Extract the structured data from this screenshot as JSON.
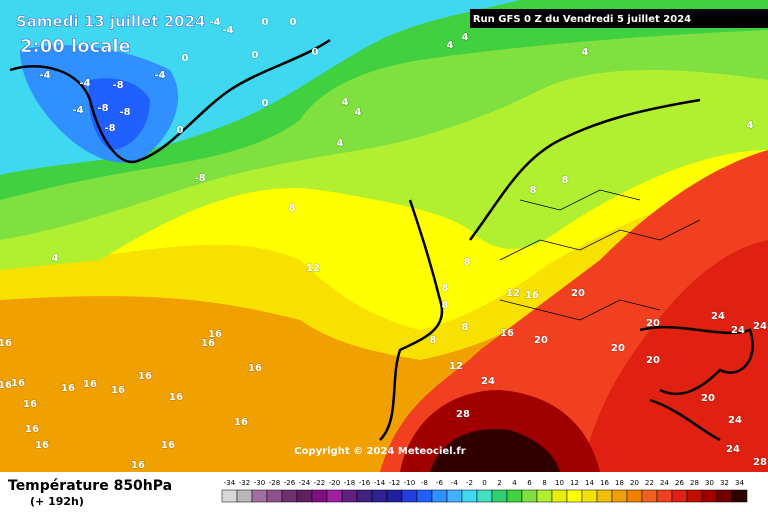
{
  "header": {
    "valid_date": "Samedi 13 juillet 2024",
    "local_time": "2:00 locale",
    "run": "Run GFS 0 Z du Vendredi 5 juillet 2024"
  },
  "footer": {
    "title": "Température 850hPa",
    "lead": "(+ 192h)",
    "copyright": "Copyright © 2024 Meteociel.fr"
  },
  "legend": {
    "values": [
      -34,
      -32,
      -30,
      -28,
      -26,
      -24,
      -22,
      -20,
      -18,
      -16,
      -14,
      -12,
      -10,
      -8,
      -6,
      -4,
      -2,
      0,
      2,
      4,
      6,
      8,
      10,
      12,
      14,
      16,
      18,
      20,
      22,
      24,
      26,
      28,
      30,
      32,
      34
    ],
    "colors": [
      "#d8d8d8",
      "#b8b8b8",
      "#a070a0",
      "#905090",
      "#703070",
      "#602060",
      "#801080",
      "#a020a0",
      "#602080",
      "#402080",
      "#302090",
      "#2020a0",
      "#2040e0",
      "#2060ff",
      "#3090ff",
      "#40b0ff",
      "#40d8f0",
      "#40e0c0",
      "#30d070",
      "#40d040",
      "#80e040",
      "#b0f030",
      "#e8f000",
      "#ffff00",
      "#f8e000",
      "#f0c000",
      "#f0a000",
      "#f08000",
      "#f06020",
      "#f04020",
      "#e02010",
      "#c01000",
      "#a00000",
      "#700000",
      "#300000"
    ]
  },
  "map_labels": [
    -4,
    -4,
    0,
    0,
    -4,
    -8,
    -4,
    -4,
    -8,
    -8,
    -8,
    -4,
    0,
    0,
    0,
    0,
    0,
    4,
    4,
    4,
    4,
    4,
    4,
    4,
    4,
    -8,
    8,
    8,
    8,
    12,
    8,
    8,
    8,
    8,
    8,
    12,
    16,
    20,
    16,
    20,
    20,
    20,
    20,
    24,
    24,
    24,
    20,
    24,
    24,
    28,
    28,
    24,
    12,
    16,
    16,
    16,
    16,
    16,
    16,
    16,
    16,
    16,
    16,
    16,
    16,
    16,
    16,
    16,
    16,
    16
  ]
}
